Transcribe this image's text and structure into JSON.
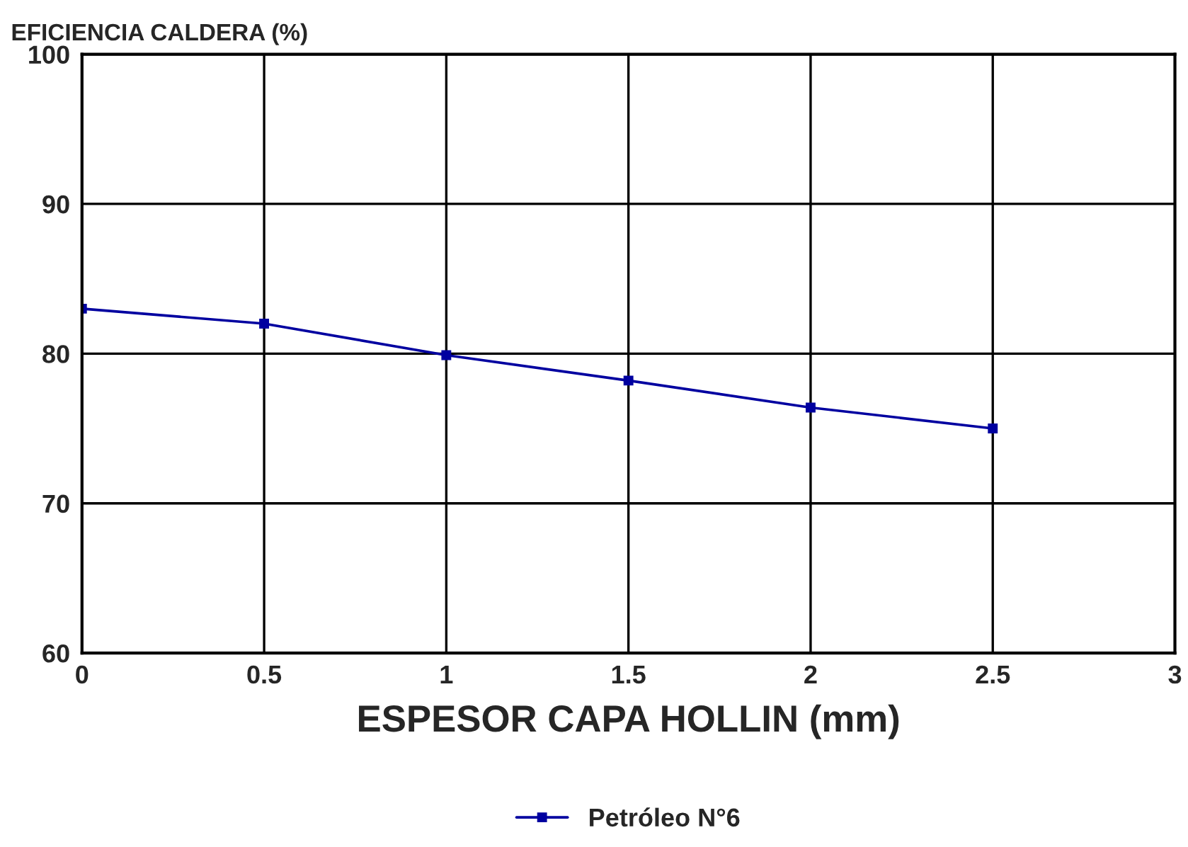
{
  "chart_data": {
    "type": "line",
    "xlabel": "ESPESOR CAPA HOLLIN (mm)",
    "ylabel": "EFICIENCIA CALDERA (%)",
    "x": [
      0,
      0.5,
      1,
      1.5,
      2,
      2.5
    ],
    "series": [
      {
        "name": "Petróleo N°6",
        "color": "#0000a0",
        "values": [
          83,
          82,
          79.9,
          78.2,
          76.4,
          75
        ]
      }
    ],
    "xlim": [
      0,
      3
    ],
    "xticks": [
      0,
      0.5,
      1,
      1.5,
      2,
      2.5,
      3
    ],
    "ylim": [
      60,
      100
    ],
    "yticks": [
      60,
      70,
      80,
      90,
      100
    ],
    "grid": true,
    "legend": "bottom",
    "marker": "square",
    "line_style": "solid"
  }
}
